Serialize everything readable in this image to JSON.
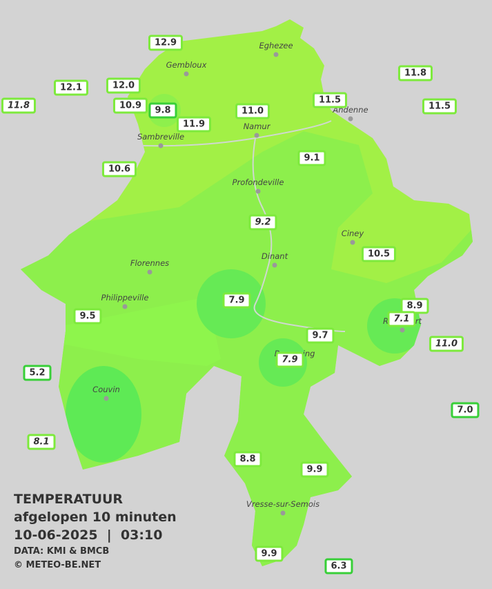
{
  "title_block": {
    "title": "TEMPERATUUR",
    "subtitle": "afgelopen 10 minuten",
    "datetime": "10-06-2025  |  03:10",
    "source": "DATA: KMI & BMCB",
    "copyright": "© METEO-BE.NET"
  },
  "towns": [
    "Eghezee",
    "Gembloux",
    "Andenne",
    "Namur",
    "Sambreville",
    "Profondeville",
    "Ciney",
    "Dinant",
    "Florennes",
    "Philippeville",
    "Rochefort",
    "Beauraing",
    "Couvin",
    "Vresse-sur-Semois"
  ],
  "stations": [
    "12.9",
    "12.1",
    "12.0",
    "11.8",
    "10.9",
    "9.8",
    "11.9",
    "11.0",
    "11.5",
    "11.8",
    "11.5",
    "10.6",
    "9.1",
    "9.2",
    "10.5",
    "7.9",
    "8.9",
    "7.1",
    "9.5",
    "9.7",
    "11.0",
    "7.9",
    "5.2",
    "7.0",
    "8.1",
    "8.8",
    "9.9",
    "9.9",
    "6.3"
  ]
}
